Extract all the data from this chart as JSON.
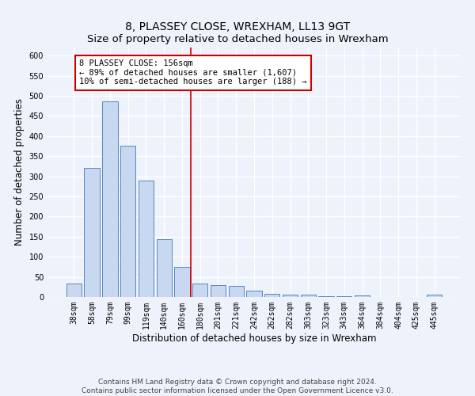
{
  "title": "8, PLASSEY CLOSE, WREXHAM, LL13 9GT",
  "subtitle": "Size of property relative to detached houses in Wrexham",
  "xlabel": "Distribution of detached houses by size in Wrexham",
  "ylabel": "Number of detached properties",
  "categories": [
    "38sqm",
    "58sqm",
    "79sqm",
    "99sqm",
    "119sqm",
    "140sqm",
    "160sqm",
    "180sqm",
    "201sqm",
    "221sqm",
    "242sqm",
    "262sqm",
    "282sqm",
    "303sqm",
    "323sqm",
    "343sqm",
    "364sqm",
    "384sqm",
    "404sqm",
    "425sqm",
    "445sqm"
  ],
  "values": [
    33,
    320,
    487,
    375,
    290,
    143,
    75,
    33,
    30,
    28,
    16,
    7,
    5,
    5,
    2,
    2,
    4,
    0,
    0,
    0,
    5
  ],
  "bar_color": "#c8d8f0",
  "bar_edge_color": "#5588bb",
  "vline_x": 6.5,
  "vline_color": "#cc0000",
  "annotation_text": "8 PLASSEY CLOSE: 156sqm\n← 89% of detached houses are smaller (1,607)\n10% of semi-detached houses are larger (188) →",
  "annotation_box_color": "#ffffff",
  "annotation_box_edge": "#cc0000",
  "ylim": [
    0,
    620
  ],
  "yticks": [
    0,
    50,
    100,
    150,
    200,
    250,
    300,
    350,
    400,
    450,
    500,
    550,
    600
  ],
  "footer_line1": "Contains HM Land Registry data © Crown copyright and database right 2024.",
  "footer_line2": "Contains public sector information licensed under the Open Government Licence v3.0.",
  "bg_color": "#eef3fb",
  "plot_bg_color": "#eef3fb",
  "title_fontsize": 10,
  "axis_label_fontsize": 8.5,
  "tick_fontsize": 7,
  "footer_fontsize": 6.5,
  "ann_fontsize": 7.5
}
